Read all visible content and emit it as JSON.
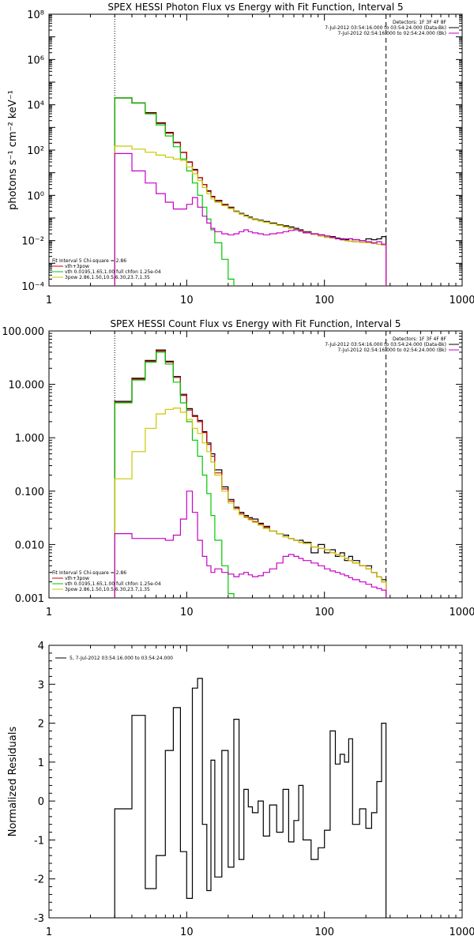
{
  "chart_data": [
    {
      "type": "line",
      "title": "SPEX HESSI Photon Flux vs Energy with Fit Function, Interval 5",
      "ylabel": "photons s⁻¹ cm⁻² keV⁻¹",
      "xlabel": "",
      "x_scale": "log",
      "y_scale": "log",
      "xlim": [
        1,
        1000
      ],
      "ylim": [
        0.0001,
        100000000
      ],
      "x_ticks": [
        1,
        10,
        100,
        1000
      ],
      "x_tick_labels": [
        "1",
        "10",
        "100",
        "1000"
      ],
      "y_ticks": [
        0.0001,
        0.01,
        1,
        100,
        10000,
        1000000,
        100000000
      ],
      "y_tick_labels": [
        "10⁻⁴",
        "10⁻²",
        "10⁰",
        "10²",
        "10⁴",
        "10⁶",
        "10⁸"
      ],
      "fit_range_lines": [
        3,
        280
      ],
      "legend_top_right": [
        "Detectors: 1F 3F 4F 8F",
        "7-Jul-2012 03:54:16.000 to 03:54:24.000 (Data-Bk)",
        "7-Jul-2012 02:54:16.000 to 02:54:24.000 (Bk)"
      ],
      "legend_bottom_left": [
        "Fit Interval 5   Chi-square = 2.86",
        "vth+3pow",
        "vth 0.0195,1.65,1.00  full chfon 1.25e-04",
        "3pow 2.86,1.50,10.5,6.30,23.7,1.35"
      ],
      "legend_colors": [
        "#000000",
        "#000000",
        "#c80000",
        "#00c800",
        "#c8c800"
      ],
      "bin_edges": [
        3,
        4,
        5,
        6,
        7,
        8,
        9,
        10,
        11,
        12,
        13,
        14,
        15,
        16,
        18,
        20,
        22,
        24,
        26,
        28,
        30,
        33,
        36,
        40,
        45,
        50,
        55,
        60,
        65,
        70,
        80,
        90,
        100,
        110,
        120,
        130,
        140,
        150,
        160,
        180,
        200,
        220,
        240,
        260,
        280
      ],
      "series": [
        {
          "color": "#000000",
          "values": [
            20000,
            12000,
            4500,
            1600,
            600,
            220,
            80,
            30,
            14,
            6,
            3,
            1.6,
            0.9,
            0.6,
            0.4,
            0.3,
            0.2,
            0.16,
            0.13,
            0.11,
            0.09,
            0.08,
            0.07,
            0.06,
            0.05,
            0.045,
            0.04,
            0.035,
            0.03,
            0.025,
            0.02,
            0.018,
            0.016,
            0.015,
            0.013,
            0.012,
            0.011,
            0.012,
            0.011,
            0.01,
            0.012,
            0.011,
            0.012,
            0.015
          ]
        },
        {
          "color": "#c80000",
          "values": [
            20000,
            12000,
            4300,
            1500,
            560,
            210,
            78,
            29,
            13,
            6,
            3,
            1.5,
            0.85,
            0.55,
            0.38,
            0.28,
            0.19,
            0.15,
            0.12,
            0.1,
            0.085,
            0.075,
            0.065,
            0.055,
            0.047,
            0.04,
            0.035,
            0.031,
            0.027,
            0.023,
            0.019,
            0.016,
            0.014,
            0.013,
            0.012,
            0.011,
            0.01,
            0.0095,
            0.009,
            0.0085,
            0.008,
            0.0075,
            0.007,
            0.0065
          ]
        },
        {
          "color": "#00c800",
          "values": [
            20000,
            11800,
            4000,
            1300,
            420,
            140,
            40,
            12,
            3.5,
            1.0,
            0.3,
            0.09,
            0.03,
            0.008,
            0.0015,
            0.0002,
            3e-05,
            0,
            0,
            0,
            0,
            0,
            0,
            0,
            0,
            0,
            0,
            0,
            0,
            0,
            0,
            0,
            0,
            0,
            0,
            0,
            0,
            0,
            0,
            0,
            0,
            0,
            0,
            0
          ]
        },
        {
          "color": "#c8c800",
          "values": [
            150,
            110,
            80,
            60,
            48,
            40,
            35,
            18,
            9,
            4.5,
            2.2,
            1.2,
            0.7,
            0.5,
            0.35,
            0.26,
            0.19,
            0.15,
            0.12,
            0.1,
            0.085,
            0.075,
            0.065,
            0.055,
            0.047,
            0.04,
            0.035,
            0.031,
            0.027,
            0.023,
            0.019,
            0.016,
            0.014,
            0.013,
            0.012,
            0.011,
            0.01,
            0.0095,
            0.009,
            0.0085,
            0.008,
            0.0075,
            0.007,
            0.0065
          ]
        },
        {
          "color": "#c800c8",
          "values": [
            70,
            12,
            3.5,
            1.2,
            0.5,
            0.25,
            0.25,
            0.4,
            0.8,
            0.3,
            0.12,
            0.06,
            0.035,
            0.025,
            0.02,
            0.018,
            0.02,
            0.025,
            0.03,
            0.025,
            0.022,
            0.02,
            0.018,
            0.02,
            0.022,
            0.025,
            0.028,
            0.03,
            0.026,
            0.022,
            0.02,
            0.018,
            0.016,
            0.014,
            0.012,
            0.011,
            0.012,
            0.012,
            0.011,
            0.01,
            0.009,
            0.008,
            0.009,
            0.007
          ]
        }
      ]
    },
    {
      "type": "line",
      "title": "SPEX HESSI Count Flux vs Energy with Fit Function, Interval 5",
      "xlabel": "",
      "ylabel": "",
      "x_scale": "log",
      "y_scale": "log",
      "xlim": [
        1,
        1000
      ],
      "ylim": [
        0.001,
        100
      ],
      "x_ticks": [
        1,
        10,
        100,
        1000
      ],
      "x_tick_labels": [
        "1",
        "10",
        "100",
        "1000"
      ],
      "y_ticks": [
        0.001,
        0.01,
        0.1,
        1,
        10,
        100
      ],
      "y_tick_labels": [
        "0.001",
        "0.010",
        "0.100",
        "1.000",
        "10.000",
        "100.000"
      ],
      "fit_range_lines": [
        3,
        280
      ],
      "legend_top_right": [
        "Detectors: 1F 3F 4F 8F",
        "7-Jul-2012 03:54:16.000 to 03:54:24.000 (Data-Bk)",
        "7-Jul-2012 02:54:16.000 to 02:54:24.000 (Bk)"
      ],
      "legend_bottom_left": [
        "Fit Interval 5   Chi-square = 2.86",
        "vth+3pow",
        "vth 0.0195,1.65,1.00  full chfon 1.25e-04",
        "3pow 2.86,1.50,10.5,6.30,23.7,1.35"
      ],
      "legend_colors": [
        "#000000",
        "#000000",
        "#c80000",
        "#00c800",
        "#c8c800"
      ],
      "bin_edges": [
        3,
        4,
        5,
        6,
        7,
        8,
        9,
        10,
        11,
        12,
        13,
        14,
        15,
        16,
        18,
        20,
        22,
        24,
        26,
        28,
        30,
        33,
        36,
        40,
        45,
        50,
        55,
        60,
        65,
        70,
        80,
        90,
        100,
        110,
        120,
        130,
        140,
        150,
        160,
        180,
        200,
        220,
        240,
        260,
        280
      ],
      "series": [
        {
          "color": "#000000",
          "values": [
            4.8,
            13,
            28,
            44,
            27,
            14,
            6.5,
            3.5,
            2.6,
            2.1,
            1.3,
            0.8,
            0.5,
            0.25,
            0.12,
            0.07,
            0.05,
            0.04,
            0.035,
            0.032,
            0.03,
            0.025,
            0.022,
            0.018,
            0.016,
            0.015,
            0.013,
            0.012,
            0.012,
            0.011,
            0.007,
            0.01,
            0.007,
            0.008,
            0.006,
            0.007,
            0.005,
            0.006,
            0.005,
            0.004,
            0.004,
            0.003,
            0.0025,
            0.0022
          ]
        },
        {
          "color": "#c80000",
          "values": [
            4.6,
            12.5,
            27,
            42,
            26,
            13.5,
            6.2,
            3.3,
            2.5,
            2.0,
            1.25,
            0.75,
            0.45,
            0.22,
            0.11,
            0.065,
            0.048,
            0.038,
            0.033,
            0.03,
            0.027,
            0.024,
            0.021,
            0.018,
            0.016,
            0.014,
            0.013,
            0.012,
            0.011,
            0.0105,
            0.009,
            0.0085,
            0.008,
            0.007,
            0.0065,
            0.006,
            0.0055,
            0.005,
            0.0045,
            0.004,
            0.0035,
            0.003,
            0.0025,
            0.002
          ]
        },
        {
          "color": "#00c800",
          "values": [
            4.5,
            12,
            26,
            40,
            24,
            11,
            4.5,
            2.0,
            0.9,
            0.45,
            0.2,
            0.09,
            0.035,
            0.012,
            0.004,
            0.0012,
            0.0003,
            0,
            0,
            0,
            0,
            0,
            0,
            0,
            0,
            0,
            0,
            0,
            0,
            0,
            0,
            0,
            0,
            0,
            0,
            0,
            0,
            0,
            0,
            0,
            0,
            0,
            0,
            0
          ]
        },
        {
          "color": "#c8c800",
          "values": [
            0.17,
            0.55,
            1.5,
            2.8,
            3.4,
            3.6,
            3.0,
            2.2,
            1.5,
            1.2,
            0.8,
            0.55,
            0.35,
            0.2,
            0.1,
            0.06,
            0.045,
            0.036,
            0.032,
            0.029,
            0.026,
            0.023,
            0.02,
            0.018,
            0.016,
            0.014,
            0.013,
            0.012,
            0.011,
            0.0105,
            0.009,
            0.0085,
            0.008,
            0.007,
            0.0065,
            0.006,
            0.0055,
            0.005,
            0.0045,
            0.004,
            0.0035,
            0.003,
            0.0025,
            0.002
          ]
        },
        {
          "color": "#c800c8",
          "values": [
            0.016,
            0.013,
            0.013,
            0.013,
            0.012,
            0.015,
            0.03,
            0.1,
            0.04,
            0.012,
            0.006,
            0.004,
            0.003,
            0.0035,
            0.003,
            0.0028,
            0.0025,
            0.0028,
            0.003,
            0.0027,
            0.0025,
            0.0026,
            0.003,
            0.0035,
            0.0045,
            0.006,
            0.0065,
            0.006,
            0.0055,
            0.005,
            0.0045,
            0.004,
            0.0035,
            0.0032,
            0.003,
            0.0028,
            0.0026,
            0.0024,
            0.0022,
            0.002,
            0.0018,
            0.0016,
            0.0015,
            0.0014
          ]
        }
      ]
    },
    {
      "type": "line",
      "title": "",
      "xlabel": "",
      "ylabel": "Normalized Residuals",
      "x_scale": "log",
      "y_scale": "linear",
      "xlim": [
        1,
        1000
      ],
      "ylim": [
        -3,
        4
      ],
      "x_ticks": [
        1,
        10,
        100,
        1000
      ],
      "x_tick_labels": [
        "1",
        "10",
        "100",
        "1000"
      ],
      "y_ticks": [
        -3,
        -2,
        -1,
        0,
        1,
        2,
        3,
        4
      ],
      "y_tick_labels": [
        "-3",
        "-2",
        "-1",
        "0",
        "1",
        "2",
        "3",
        "4"
      ],
      "legend_top_left": "5, 7-Jul-2012 03:54:16.000 to 03:54:24.000",
      "bin_edges": [
        3,
        4,
        5,
        6,
        7,
        8,
        9,
        10,
        11,
        12,
        13,
        14,
        15,
        16,
        18,
        20,
        22,
        24,
        26,
        28,
        30,
        33,
        36,
        40,
        45,
        50,
        55,
        60,
        65,
        70,
        80,
        90,
        100,
        110,
        120,
        130,
        140,
        150,
        160,
        180,
        200,
        220,
        240,
        260,
        280
      ],
      "series": [
        {
          "color": "#000000",
          "values": [
            -0.2,
            2.2,
            -2.25,
            -1.4,
            1.3,
            2.4,
            -1.3,
            -2.5,
            2.9,
            3.15,
            -0.6,
            -2.3,
            1.05,
            -1.95,
            1.3,
            -1.7,
            2.1,
            -1.5,
            0.3,
            -0.15,
            -0.3,
            0.0,
            -0.9,
            -0.1,
            -0.8,
            0.3,
            -1.05,
            -0.5,
            0.4,
            -1.0,
            -1.5,
            -1.2,
            -0.75,
            1.8,
            0.95,
            1.2,
            1.0,
            1.6,
            -0.6,
            -0.2,
            -0.7,
            -0.3,
            0.5,
            2.0
          ]
        }
      ]
    }
  ]
}
